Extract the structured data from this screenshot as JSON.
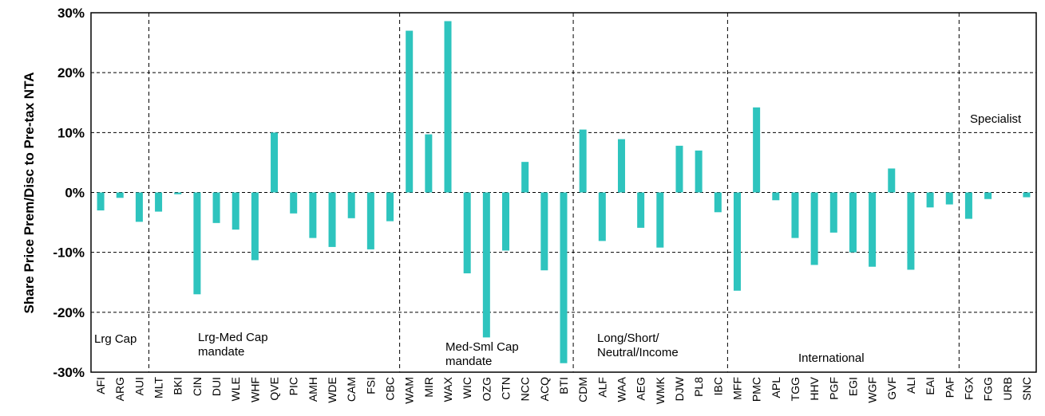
{
  "chart_data": {
    "type": "bar",
    "ylabel": "Share Price Prem/Disc to Pre-tax NTA",
    "ylim": [
      -0.3,
      0.3
    ],
    "y_ticks": [
      0.3,
      0.2,
      0.1,
      0,
      -0.1,
      -0.2,
      -0.3
    ],
    "y_tick_labels": [
      "30%",
      "20%",
      "10%",
      "0%",
      "-10%",
      "-20%",
      "-30%"
    ],
    "bar_color": "#2EC4BE",
    "grid": "horizontal-dashed",
    "categories": [
      "AFI",
      "ARG",
      "AUI",
      "MLT",
      "BKI",
      "CIN",
      "DUI",
      "WLE",
      "WHF",
      "QVE",
      "PIC",
      "AMH",
      "WDE",
      "CAM",
      "FSI",
      "CBC",
      "WAM",
      "MIR",
      "WAX",
      "WIC",
      "OZG",
      "CTN",
      "NCC",
      "ACQ",
      "BTI",
      "CDM",
      "ALF",
      "WAA",
      "AEG",
      "WMK",
      "DJW",
      "PL8",
      "IBC",
      "MFF",
      "PMC",
      "APL",
      "TGG",
      "HHV",
      "PGF",
      "EGI",
      "WGF",
      "GVF",
      "ALI",
      "EAI",
      "PAF",
      "FGX",
      "FGG",
      "URB",
      "SNC"
    ],
    "values": [
      -0.03,
      -0.009,
      -0.049,
      -0.032,
      -0.003,
      -0.17,
      -0.051,
      -0.062,
      -0.113,
      0.1,
      -0.035,
      -0.076,
      -0.091,
      -0.043,
      -0.095,
      -0.048,
      0.27,
      0.097,
      0.286,
      -0.135,
      -0.242,
      -0.097,
      0.051,
      -0.13,
      -0.285,
      0.105,
      -0.081,
      0.089,
      -0.059,
      -0.092,
      0.078,
      0.07,
      -0.033,
      -0.164,
      0.142,
      -0.013,
      -0.076,
      -0.121,
      -0.067,
      -0.1,
      -0.124,
      0.04,
      -0.129,
      -0.025,
      -0.02,
      -0.044,
      -0.011,
      0,
      -0.008
    ],
    "groups": [
      {
        "label_lines": [
          "Lrg Cap"
        ],
        "start": 0,
        "end": 2
      },
      {
        "label_lines": [
          "Lrg-Med Cap",
          "mandate"
        ],
        "start": 3,
        "end": 15
      },
      {
        "label_lines": [
          "Med-Sml Cap",
          "mandate"
        ],
        "start": 16,
        "end": 24
      },
      {
        "label_lines": [
          "Long/Short/",
          "Neutral/Income"
        ],
        "start": 25,
        "end": 32
      },
      {
        "label_lines": [
          "International"
        ],
        "start": 33,
        "end": 44
      },
      {
        "label_lines": [
          "Specialist"
        ],
        "start": 45,
        "end": 48
      }
    ]
  }
}
